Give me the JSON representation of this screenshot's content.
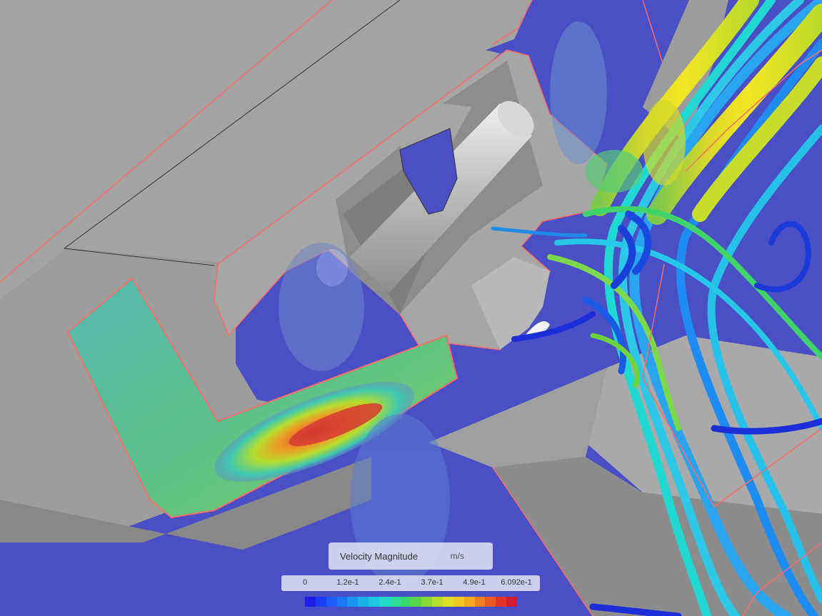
{
  "legend": {
    "title": "Velocity Magnitude",
    "unit": "m/s",
    "ticks": [
      "0",
      "1.2e-1",
      "2.4e-1",
      "3.7e-1",
      "4.9e-1",
      "6.092e-1"
    ],
    "colors": [
      "#1e1ee6",
      "#1b3cf0",
      "#1a5cf5",
      "#1a78f5",
      "#1b95f0",
      "#1cb0e8",
      "#1fc8e0",
      "#22d9c8",
      "#2adc9a",
      "#3ad66c",
      "#5bd447",
      "#8ad635",
      "#b8dc2b",
      "#dede27",
      "#f2c823",
      "#f4a722",
      "#f08122",
      "#ea5a22",
      "#e0342a",
      "#d21c30"
    ]
  },
  "scene": {
    "background": "#4a4fc6",
    "solid_color": "#9a9a9a",
    "edge_color": "#ff6a6a"
  }
}
